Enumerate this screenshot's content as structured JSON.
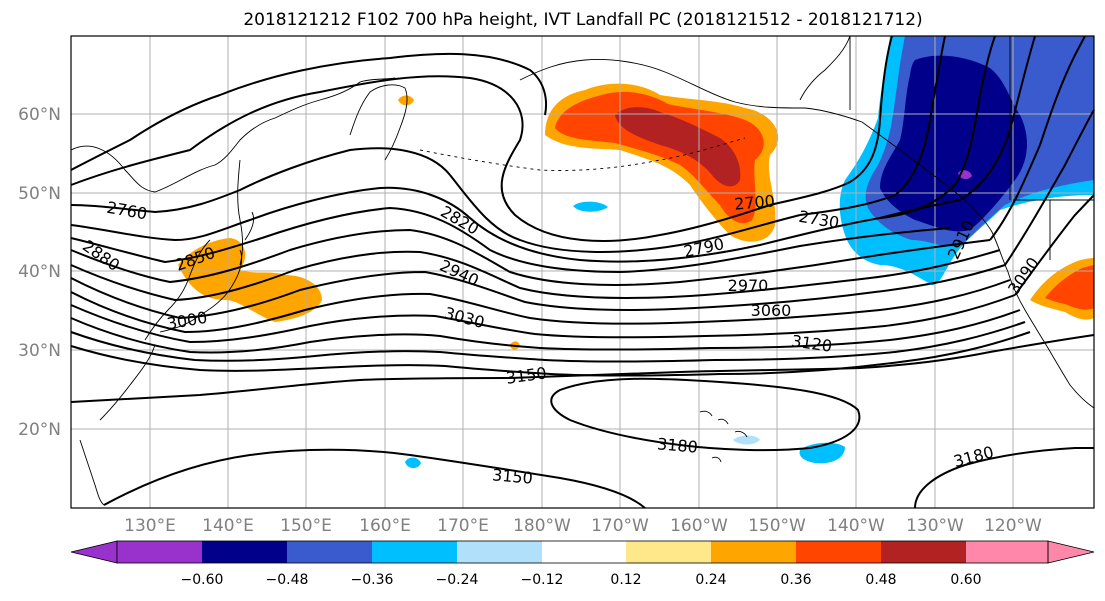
{
  "title": "2018121212 F102 700 hPa height, IVT Landfall PC (2018121512 - 2018121712)",
  "lat_labels": [
    "60°N",
    "50°N",
    "40°N",
    "30°N",
    "20°N"
  ],
  "lon_labels": [
    "130°E",
    "140°E",
    "150°E",
    "160°E",
    "170°E",
    "180°W",
    "170°W",
    "160°W",
    "150°W",
    "140°W",
    "130°W",
    "120°W"
  ],
  "contour_labels": [
    "2760",
    "2880",
    "2850",
    "3000",
    "2820",
    "2940",
    "3030",
    "2790",
    "2700",
    "2730",
    "2970",
    "3060",
    "3120",
    "3150",
    "3180",
    "3150",
    "3180",
    "2910",
    "3090"
  ],
  "colorbar": {
    "ticks": [
      "−0.60",
      "−0.48",
      "−0.36",
      "−0.24",
      "−0.12",
      "0.12",
      "0.24",
      "0.36",
      "0.48",
      "0.60"
    ],
    "colors": [
      "#9932cc",
      "#00008b",
      "#3a5bcd",
      "#00bfff",
      "#b0e0fa",
      "#ffffff",
      "#ffe88a",
      "#ffa500",
      "#ff4500",
      "#b22222",
      "#ff88aa"
    ]
  },
  "colors": {
    "coast": "#000000",
    "contour": "#000000",
    "grid": "#b0b0b0"
  }
}
